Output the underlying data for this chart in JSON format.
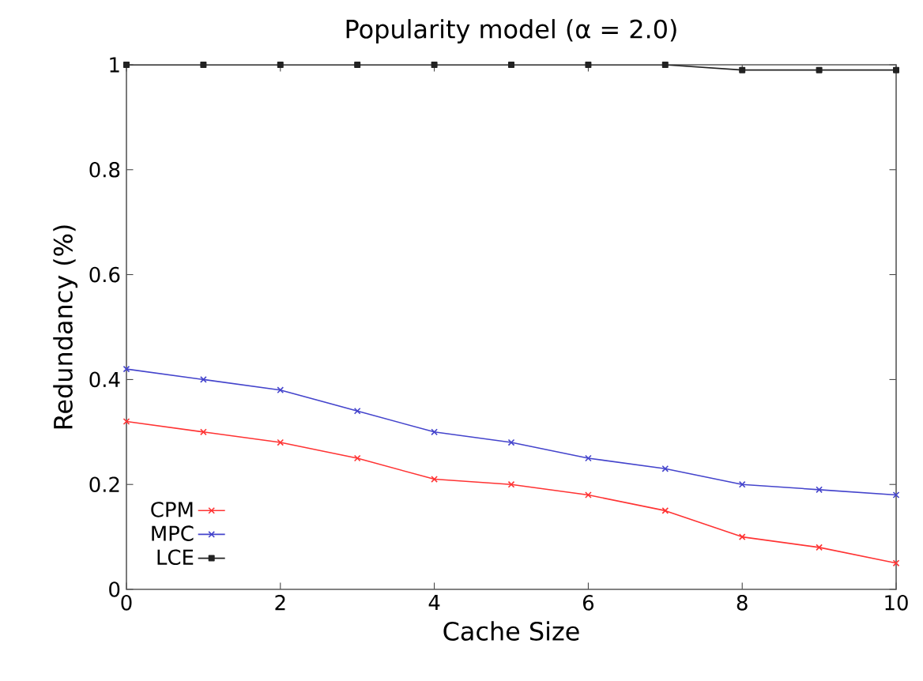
{
  "chart_data": {
    "type": "line",
    "title": "Popularity model (α = 2.0)",
    "xlabel": "Cache Size",
    "ylabel": "Redundancy (%)",
    "x": [
      0,
      1,
      2,
      3,
      4,
      5,
      6,
      7,
      8,
      9,
      10
    ],
    "series": [
      {
        "name": "CPM",
        "color": "#ff3333",
        "marker": "cross",
        "values": [
          0.32,
          0.3,
          0.28,
          0.25,
          0.21,
          0.2,
          0.18,
          0.15,
          0.1,
          0.08,
          0.05
        ]
      },
      {
        "name": "MPC",
        "color": "#4444cc",
        "marker": "cross",
        "values": [
          0.42,
          0.4,
          0.38,
          0.34,
          0.3,
          0.28,
          0.25,
          0.23,
          0.2,
          0.19,
          0.18
        ]
      },
      {
        "name": "LCE",
        "color": "#222222",
        "marker": "square",
        "values": [
          1,
          1,
          1,
          1,
          1,
          1,
          1,
          1,
          0.99,
          0.99,
          0.99
        ]
      }
    ],
    "xlim": [
      0,
      10
    ],
    "ylim": [
      0,
      1
    ],
    "xticks": [
      0,
      2,
      4,
      6,
      8,
      10
    ],
    "yticks": [
      0,
      0.2,
      0.4,
      0.6,
      0.8,
      1
    ],
    "grid": false,
    "legend": "bottom left",
    "line_style": "solid"
  }
}
